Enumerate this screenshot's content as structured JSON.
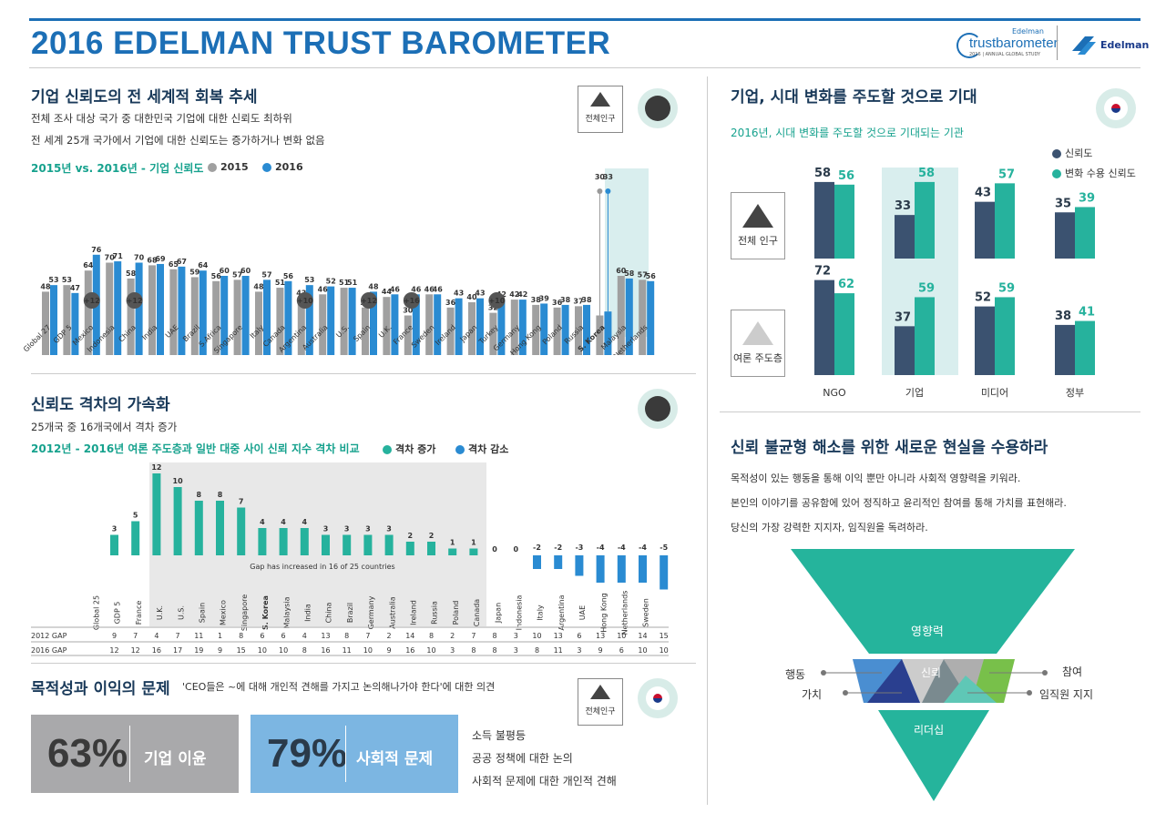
{
  "header": {
    "title": "2016 EDELMAN TRUST BAROMETER",
    "logo_top": "Edelman",
    "logo_main": "trustbarometer",
    "logo_sub": "2016 | ANNUAL GLOBAL STUDY",
    "edelman": "Edelman"
  },
  "s1": {
    "title": "기업 신뢰도의 전 세계적 회복 추세",
    "line1": "전체 조사 대상 국가 중 대한민국 기업에 대한 신뢰도 최하위",
    "line2": "전 세계 25개 국가에서 기업에 대한 신뢰도는 증가하거나 변화 없음",
    "chart_label": "2015년 vs. 2016년 - 기업 신뢰도",
    "leg2015": "2015",
    "leg2016": "2016",
    "popbox": "전체인구",
    "colors": {
      "c2015": "#a0a0a0",
      "c2016": "#2a8bd2"
    }
  },
  "s2": {
    "title": "신뢰도 격차의 가속화",
    "line1": "25개국 중 16개국에서 격차 증가",
    "chart_label": "2012년 - 2016년 여론 주도층과 일반 대중 사이 신뢰 지수 격차 비교",
    "leg_inc": "격차 증가",
    "leg_dec": "격차 감소",
    "note": "Gap has increased in 16 of 25 countries",
    "row2012": "2012 GAP",
    "row2016": "2016 GAP"
  },
  "s3": {
    "title": "목적성과 이익의 문제",
    "subtitle": "'CEO들은 ~에 대해 개인적 견해를 가지고 논의해나가야 한다'에 대한 의견",
    "popbox": "전체인구",
    "pct1": "63%",
    "label1": "기업 이윤",
    "pct2": "79%",
    "label2": "사회적 문제",
    "items": [
      "소득 불평등",
      "공공 정책에 대한 논의",
      "사회적 문제에 대한 개인적 견해"
    ]
  },
  "s4": {
    "title": "기업, 시대 변화를 주도할 것으로 기대",
    "subtitle": "2016년, 시대 변화를 주도할 것으로 기대되는 기관",
    "leg1": "신뢰도",
    "leg2": "변화 수용 신뢰도",
    "row1": "전체 인구",
    "row2": "여론 주도층"
  },
  "s5": {
    "title": "신뢰 불균형 해소를 위한 새로운 현실을 수용하라",
    "lines": [
      "목적성이 있는 행동을 통해 이익 뿐만 아니라 사회적 영향력을 키워라.",
      "본인의 이야기를 공유함에 있어 정직하고 윤리적인 참여를 통해 가치를 표현해라.",
      "당신의 가장 강력한 지지자, 임직원을 독려하라."
    ],
    "top": "영향력",
    "mid": "신뢰",
    "bottom": "리더십",
    "l1": "행동",
    "l2": "가치",
    "r1": "참여",
    "r2": "임직원 지지"
  },
  "chart_data": [
    {
      "type": "bar",
      "title": "2015년 vs. 2016년 - 기업 신뢰도",
      "categories": [
        "Global 27",
        "GDP 5",
        "Mexico",
        "Indonesia",
        "China",
        "India",
        "UAE",
        "Brazil",
        "S.Africa",
        "Singapore",
        "Italy",
        "Canada",
        "Argentina",
        "Australia",
        "U.S.",
        "Spain",
        "U.K.",
        "France",
        "Sweden",
        "Ireland",
        "Japan",
        "Turkey",
        "Germany",
        "Hong Kong",
        "Poland",
        "Russia",
        "S. Korea",
        "Malaysia",
        "Netherlands"
      ],
      "series": [
        {
          "name": "2015",
          "values": [
            48,
            53,
            64,
            70,
            58,
            68,
            65,
            59,
            56,
            57,
            48,
            51,
            43,
            46,
            51,
            36,
            44,
            30,
            46,
            36,
            40,
            32,
            42,
            38,
            36,
            37,
            30,
            60,
            57
          ]
        },
        {
          "name": "2016",
          "values": [
            53,
            47,
            76,
            71,
            70,
            69,
            67,
            64,
            60,
            60,
            57,
            56,
            53,
            52,
            51,
            48,
            46,
            46,
            46,
            43,
            43,
            42,
            42,
            39,
            38,
            38,
            33,
            58,
            56
          ]
        }
      ],
      "annotations": [
        {
          "category": "Mexico",
          "text": "+12"
        },
        {
          "category": "China",
          "text": "+12"
        },
        {
          "category": "Argentina",
          "text": "+10"
        },
        {
          "category": "Spain",
          "text": "+12"
        },
        {
          "category": "France",
          "text": "+16"
        },
        {
          "category": "Turkey",
          "text": "+10"
        }
      ]
    },
    {
      "type": "bar",
      "title": "2012년 - 2016년 여론 주도층과 일반 대중 사이 신뢰 지수 격차 비교",
      "categories": [
        "Global 25",
        "GDP 5",
        "France",
        "U.K.",
        "U.S.",
        "Spain",
        "Mexico",
        "Singapore",
        "S. Korea",
        "Malaysia",
        "India",
        "China",
        "Brazil",
        "Germany",
        "Australia",
        "Ireland",
        "Russia",
        "Poland",
        "Canada",
        "Japan",
        "Indonesia",
        "Italy",
        "Argentina",
        "UAE",
        "Hong Kong",
        "Netherlands",
        "Sweden"
      ],
      "values": [
        3,
        5,
        12,
        10,
        8,
        8,
        7,
        4,
        4,
        4,
        3,
        3,
        3,
        3,
        2,
        2,
        1,
        1,
        0,
        0,
        -2,
        -2,
        -3,
        -4,
        -4,
        -4,
        -5
      ],
      "gap2012": [
        9,
        7,
        4,
        7,
        11,
        1,
        8,
        6,
        6,
        4,
        13,
        8,
        7,
        2,
        14,
        8,
        2,
        7,
        8,
        3,
        10,
        13,
        6,
        13,
        10,
        14,
        15
      ],
      "gap2016": [
        12,
        12,
        16,
        17,
        19,
        9,
        15,
        10,
        10,
        8,
        16,
        11,
        10,
        9,
        16,
        10,
        3,
        8,
        8,
        3,
        8,
        11,
        3,
        9,
        6,
        10,
        10
      ]
    },
    {
      "type": "bar",
      "title": "2016년, 시대 변화를 주도할 것으로 기대되는 기관",
      "categories": [
        "NGO",
        "기업",
        "미디어",
        "정부"
      ],
      "groups": [
        {
          "name": "전체 인구",
          "trust": [
            58,
            33,
            43,
            35
          ],
          "change": [
            56,
            58,
            57,
            39
          ]
        },
        {
          "name": "여론 주도층",
          "trust": [
            72,
            37,
            52,
            38
          ],
          "change": [
            62,
            59,
            59,
            41
          ]
        }
      ]
    }
  ]
}
